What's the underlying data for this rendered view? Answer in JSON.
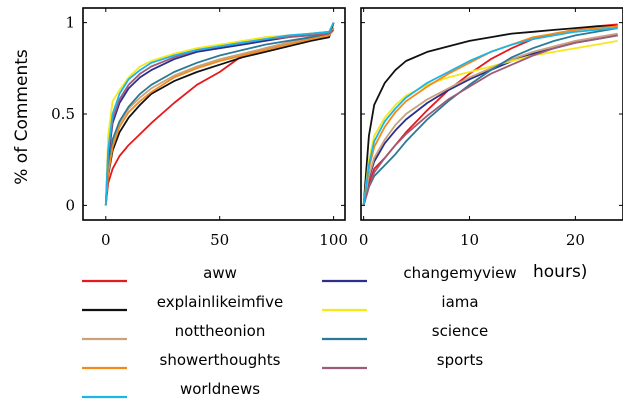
{
  "chart_data": [
    {
      "type": "line",
      "ylabel": "% of Comments",
      "xlim": [
        -10,
        105
      ],
      "ylim": [
        -0.08,
        1.08
      ],
      "xticks": [
        "0",
        "50",
        "100"
      ],
      "yticks": [
        "0",
        "0.5",
        "1"
      ],
      "series": [
        {
          "name": "aww",
          "color": "#e41a1c",
          "x": [
            0,
            1,
            3,
            6,
            10,
            15,
            20,
            30,
            40,
            50,
            60,
            70,
            80,
            90,
            98,
            100
          ],
          "y": [
            0,
            0.12,
            0.2,
            0.27,
            0.33,
            0.39,
            0.45,
            0.56,
            0.66,
            0.73,
            0.82,
            0.86,
            0.89,
            0.92,
            0.94,
            1.0
          ]
        },
        {
          "name": "changemyview",
          "color": "#2c2f8c",
          "x": [
            0,
            1,
            3,
            6,
            10,
            15,
            20,
            30,
            40,
            50,
            60,
            70,
            80,
            90,
            98,
            100
          ],
          "y": [
            0,
            0.25,
            0.45,
            0.56,
            0.64,
            0.7,
            0.74,
            0.8,
            0.84,
            0.86,
            0.88,
            0.9,
            0.92,
            0.94,
            0.95,
            0.97
          ]
        },
        {
          "name": "explainlikeimfive",
          "color": "#111111",
          "x": [
            0,
            1,
            3,
            6,
            10,
            15,
            20,
            30,
            40,
            50,
            60,
            70,
            80,
            90,
            98,
            100
          ],
          "y": [
            0,
            0.16,
            0.3,
            0.4,
            0.48,
            0.55,
            0.61,
            0.68,
            0.73,
            0.77,
            0.81,
            0.84,
            0.87,
            0.9,
            0.92,
            1.0
          ]
        },
        {
          "name": "iama",
          "color": "#f5e81b",
          "x": [
            0,
            1,
            3,
            6,
            10,
            15,
            20,
            30,
            40,
            50,
            60,
            70,
            80,
            90,
            98,
            100
          ],
          "y": [
            0,
            0.38,
            0.57,
            0.63,
            0.7,
            0.76,
            0.79,
            0.83,
            0.86,
            0.88,
            0.9,
            0.92,
            0.93,
            0.94,
            0.95,
            0.96
          ]
        },
        {
          "name": "nottheonion",
          "color": "#c8a27c",
          "x": [
            0,
            1,
            3,
            6,
            10,
            15,
            20,
            30,
            40,
            50,
            60,
            70,
            80,
            90,
            98,
            100
          ],
          "y": [
            0,
            0.2,
            0.35,
            0.45,
            0.53,
            0.59,
            0.64,
            0.71,
            0.76,
            0.8,
            0.83,
            0.86,
            0.89,
            0.91,
            0.93,
            0.96
          ]
        },
        {
          "name": "science",
          "color": "#2a7a96",
          "x": [
            0,
            1,
            3,
            6,
            10,
            15,
            20,
            30,
            40,
            50,
            60,
            70,
            80,
            90,
            98,
            100
          ],
          "y": [
            0,
            0.2,
            0.36,
            0.46,
            0.54,
            0.61,
            0.66,
            0.73,
            0.78,
            0.82,
            0.85,
            0.88,
            0.9,
            0.92,
            0.94,
            0.97
          ]
        },
        {
          "name": "showerthoughts",
          "color": "#f28a1c",
          "x": [
            0,
            1,
            3,
            6,
            10,
            15,
            20,
            30,
            40,
            50,
            60,
            70,
            80,
            90,
            98,
            100
          ],
          "y": [
            0,
            0.17,
            0.32,
            0.43,
            0.51,
            0.57,
            0.62,
            0.7,
            0.75,
            0.79,
            0.82,
            0.85,
            0.88,
            0.91,
            0.93,
            0.97
          ]
        },
        {
          "name": "sports",
          "color": "#9c5b7a",
          "x": [
            0,
            1,
            3,
            6,
            10,
            15,
            20,
            30,
            40,
            50,
            60,
            70,
            80,
            90,
            98,
            100
          ],
          "y": [
            0,
            0.28,
            0.47,
            0.58,
            0.66,
            0.72,
            0.76,
            0.81,
            0.85,
            0.87,
            0.89,
            0.91,
            0.92,
            0.93,
            0.94,
            0.96
          ]
        },
        {
          "name": "worldnews",
          "color": "#1fb4e6",
          "x": [
            0,
            1,
            3,
            6,
            10,
            15,
            20,
            30,
            40,
            50,
            60,
            70,
            80,
            90,
            98,
            100
          ],
          "y": [
            0,
            0.3,
            0.5,
            0.61,
            0.69,
            0.74,
            0.78,
            0.82,
            0.85,
            0.87,
            0.89,
            0.91,
            0.93,
            0.94,
            0.95,
            1.0
          ]
        }
      ]
    },
    {
      "type": "line",
      "xlabel": "hours)",
      "xlim": [
        -0.25,
        24.5
      ],
      "ylim": [
        -0.08,
        1.08
      ],
      "xticks": [
        "0",
        "10",
        "20"
      ],
      "series": [
        {
          "name": "aww",
          "color": "#e41a1c",
          "x": [
            0,
            0.5,
            1,
            2,
            3,
            4,
            6,
            8,
            10,
            12,
            14,
            16,
            18,
            20,
            22,
            24
          ],
          "y": [
            0,
            0.12,
            0.2,
            0.26,
            0.33,
            0.4,
            0.52,
            0.63,
            0.72,
            0.8,
            0.86,
            0.91,
            0.94,
            0.96,
            0.98,
            0.99
          ]
        },
        {
          "name": "changemyview",
          "color": "#2c2f8c",
          "x": [
            0,
            0.5,
            1,
            2,
            3,
            4,
            6,
            8,
            10,
            12,
            14,
            16,
            18,
            20,
            22,
            24
          ],
          "y": [
            0,
            0.15,
            0.24,
            0.34,
            0.41,
            0.47,
            0.56,
            0.63,
            0.69,
            0.74,
            0.79,
            0.83,
            0.86,
            0.89,
            0.91,
            0.93
          ]
        },
        {
          "name": "explainlikeimfive",
          "color": "#111111",
          "x": [
            0,
            0.5,
            1,
            2,
            3,
            4,
            6,
            8,
            10,
            12,
            14,
            16,
            18,
            20,
            22,
            24
          ],
          "y": [
            0,
            0.38,
            0.55,
            0.67,
            0.74,
            0.79,
            0.84,
            0.87,
            0.9,
            0.92,
            0.94,
            0.95,
            0.96,
            0.97,
            0.98,
            0.98
          ]
        },
        {
          "name": "iama",
          "color": "#f5e81b",
          "x": [
            0,
            0.5,
            1,
            2,
            3,
            4,
            6,
            8,
            10,
            12,
            14,
            16,
            18,
            20,
            22,
            24
          ],
          "y": [
            0,
            0.25,
            0.38,
            0.48,
            0.55,
            0.6,
            0.66,
            0.7,
            0.73,
            0.76,
            0.79,
            0.82,
            0.84,
            0.86,
            0.88,
            0.9
          ]
        },
        {
          "name": "nottheonion",
          "color": "#c8a27c",
          "x": [
            0,
            0.5,
            1,
            2,
            3,
            4,
            6,
            8,
            10,
            12,
            14,
            16,
            18,
            20,
            22,
            24
          ],
          "y": [
            0,
            0.16,
            0.26,
            0.36,
            0.44,
            0.5,
            0.58,
            0.64,
            0.7,
            0.75,
            0.8,
            0.84,
            0.87,
            0.9,
            0.92,
            0.94
          ]
        },
        {
          "name": "science",
          "color": "#2a7a96",
          "x": [
            0,
            0.5,
            1,
            2,
            3,
            4,
            6,
            8,
            10,
            12,
            14,
            16,
            18,
            20,
            22,
            24
          ],
          "y": [
            0,
            0.1,
            0.16,
            0.22,
            0.28,
            0.35,
            0.47,
            0.57,
            0.66,
            0.74,
            0.81,
            0.86,
            0.9,
            0.93,
            0.95,
            0.97
          ]
        },
        {
          "name": "showerthoughts",
          "color": "#f28a1c",
          "x": [
            0,
            0.5,
            1,
            2,
            3,
            4,
            6,
            8,
            10,
            12,
            14,
            16,
            18,
            20,
            22,
            24
          ],
          "y": [
            0,
            0.2,
            0.32,
            0.43,
            0.51,
            0.57,
            0.65,
            0.72,
            0.78,
            0.84,
            0.88,
            0.92,
            0.94,
            0.96,
            0.97,
            0.98
          ]
        },
        {
          "name": "sports",
          "color": "#9c5b7a",
          "x": [
            0,
            0.5,
            1,
            2,
            3,
            4,
            6,
            8,
            10,
            12,
            14,
            16,
            18,
            20,
            22,
            24
          ],
          "y": [
            0,
            0.1,
            0.18,
            0.26,
            0.33,
            0.39,
            0.49,
            0.58,
            0.65,
            0.72,
            0.77,
            0.82,
            0.86,
            0.89,
            0.91,
            0.93
          ]
        },
        {
          "name": "worldnews",
          "color": "#1fb4e6",
          "x": [
            0,
            0.5,
            1,
            2,
            3,
            4,
            6,
            8,
            10,
            12,
            14,
            16,
            18,
            20,
            22,
            24
          ],
          "y": [
            0,
            0.22,
            0.35,
            0.46,
            0.53,
            0.59,
            0.67,
            0.73,
            0.79,
            0.84,
            0.88,
            0.91,
            0.93,
            0.95,
            0.96,
            0.97
          ]
        }
      ]
    }
  ],
  "legend": [
    {
      "label": "aww",
      "color": "#e41a1c"
    },
    {
      "label": "changemyview",
      "color": "#2c2f8c"
    },
    {
      "label": "explainlikeimfive",
      "color": "#111111"
    },
    {
      "label": "iama",
      "color": "#f5e81b"
    },
    {
      "label": "nottheonion",
      "color": "#c8a27c"
    },
    {
      "label": "science",
      "color": "#2a7a96"
    },
    {
      "label": "showerthoughts",
      "color": "#f28a1c"
    },
    {
      "label": "sports",
      "color": "#9c5b7a"
    },
    {
      "label": "worldnews",
      "color": "#1fb4e6"
    }
  ]
}
